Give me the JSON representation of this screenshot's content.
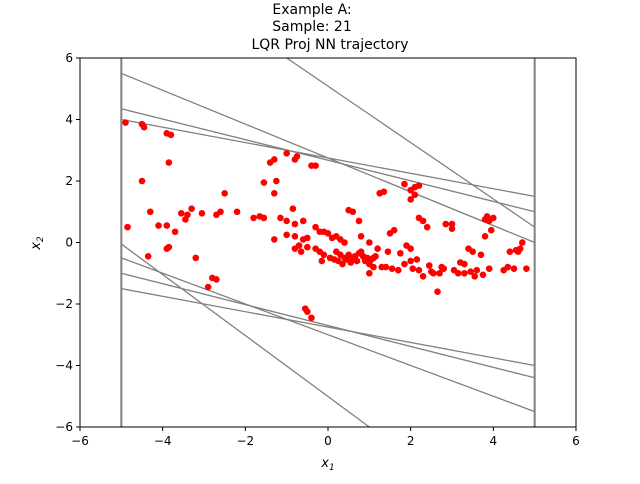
{
  "chart_data": {
    "type": "scatter",
    "title_lines": [
      "Example A:",
      "Sample: 21",
      "LQR Proj NN trajectory"
    ],
    "xlabel_main": "x",
    "xlabel_sub": "1",
    "ylabel_main": "x",
    "ylabel_sub": "2",
    "xlim": [
      -6,
      6
    ],
    "ylim": [
      -6,
      6
    ],
    "xticks": [
      -6,
      -4,
      -2,
      0,
      2,
      4,
      6
    ],
    "yticks": [
      -6,
      -4,
      -2,
      0,
      2,
      4,
      6
    ],
    "xtick_labels": [
      "−6",
      "−4",
      "−2",
      "0",
      "2",
      "4",
      "6"
    ],
    "ytick_labels": [
      "−6",
      "−4",
      "−2",
      "0",
      "2",
      "4",
      "6"
    ],
    "grid": false,
    "colors": {
      "points": "#ff0000",
      "constraint_lines": "#808080",
      "axes": "#000000"
    },
    "constraint_lines": [
      {
        "x1": -5,
        "y1": -6,
        "x2": -5,
        "y2": 6
      },
      {
        "x1": 5,
        "y1": -6,
        "x2": 5,
        "y2": 6
      },
      {
        "x1": -5,
        "y1": 5.5,
        "x2": 5,
        "y2": 0.0
      },
      {
        "x1": -5,
        "y1": 4.35,
        "x2": 5,
        "y2": 1.0
      },
      {
        "x1": -5,
        "y1": 4.0,
        "x2": 5,
        "y2": 1.5
      },
      {
        "x1": -1.0,
        "y1": 6.0,
        "x2": 5,
        "y2": 0.5
      },
      {
        "x1": -5,
        "y1": -0.05,
        "x2": 1.0,
        "y2": -6.0
      },
      {
        "x1": -5,
        "y1": -0.5,
        "x2": 5,
        "y2": -5.5
      },
      {
        "x1": -5,
        "y1": -1.0,
        "x2": 5,
        "y2": -4.4
      },
      {
        "x1": -5,
        "y1": -1.5,
        "x2": 5,
        "y2": -4.0
      }
    ],
    "points": [
      [
        -4.9,
        3.9
      ],
      [
        -4.5,
        3.85
      ],
      [
        -4.45,
        3.75
      ],
      [
        -3.9,
        3.55
      ],
      [
        -3.8,
        3.5
      ],
      [
        -4.5,
        2.0
      ],
      [
        -3.85,
        2.6
      ],
      [
        -4.85,
        0.5
      ],
      [
        -4.3,
        1.0
      ],
      [
        -4.1,
        0.55
      ],
      [
        -3.9,
        0.55
      ],
      [
        -3.55,
        0.95
      ],
      [
        -3.4,
        0.9
      ],
      [
        -3.3,
        1.1
      ],
      [
        -3.05,
        0.95
      ],
      [
        -3.45,
        0.75
      ],
      [
        -3.7,
        0.35
      ],
      [
        -3.85,
        -0.15
      ],
      [
        -3.9,
        -0.2
      ],
      [
        -4.35,
        -0.45
      ],
      [
        -3.2,
        -0.5
      ],
      [
        -2.7,
        -1.2
      ],
      [
        -2.8,
        -1.15
      ],
      [
        -2.9,
        -1.45
      ],
      [
        -2.7,
        0.9
      ],
      [
        -2.6,
        1.0
      ],
      [
        -2.5,
        1.6
      ],
      [
        -2.2,
        1.0
      ],
      [
        -1.8,
        0.8
      ],
      [
        -1.65,
        0.85
      ],
      [
        -1.55,
        0.8
      ],
      [
        -1.55,
        1.95
      ],
      [
        -1.4,
        2.6
      ],
      [
        -1.3,
        2.7
      ],
      [
        -1.3,
        1.6
      ],
      [
        -1.25,
        2.0
      ],
      [
        -1.15,
        0.8
      ],
      [
        -1.0,
        2.9
      ],
      [
        -0.8,
        2.7
      ],
      [
        -0.75,
        2.8
      ],
      [
        -0.4,
        2.5
      ],
      [
        -0.3,
        2.5
      ],
      [
        -0.85,
        1.1
      ],
      [
        -1.0,
        0.7
      ],
      [
        -0.8,
        0.6
      ],
      [
        -0.6,
        0.7
      ],
      [
        -1.3,
        0.1
      ],
      [
        -1.0,
        0.25
      ],
      [
        -0.8,
        0.2
      ],
      [
        -0.6,
        0.1
      ],
      [
        -0.5,
        0.15
      ],
      [
        -0.3,
        0.5
      ],
      [
        -0.2,
        0.35
      ],
      [
        -0.1,
        0.35
      ],
      [
        0.0,
        0.3
      ],
      [
        -0.7,
        -0.1
      ],
      [
        -0.5,
        -0.15
      ],
      [
        -0.3,
        -0.2
      ],
      [
        -0.2,
        -0.3
      ],
      [
        -0.1,
        -0.4
      ],
      [
        -0.8,
        -0.2
      ],
      [
        -0.65,
        -0.3
      ],
      [
        -0.15,
        -0.6
      ],
      [
        -0.55,
        -2.15
      ],
      [
        -0.5,
        -2.25
      ],
      [
        -0.4,
        -2.45
      ],
      [
        0.1,
        0.15
      ],
      [
        0.2,
        0.2
      ],
      [
        0.3,
        0.1
      ],
      [
        0.4,
        0.0
      ],
      [
        0.2,
        -0.3
      ],
      [
        0.3,
        -0.4
      ],
      [
        0.4,
        -0.5
      ],
      [
        0.5,
        -0.4
      ],
      [
        0.6,
        -0.5
      ],
      [
        0.7,
        -0.6
      ],
      [
        0.8,
        -0.3
      ],
      [
        0.9,
        -0.6
      ],
      [
        1.0,
        -0.7
      ],
      [
        1.0,
        -1.0
      ],
      [
        1.1,
        -0.5
      ],
      [
        1.1,
        -0.8
      ],
      [
        0.5,
        1.05
      ],
      [
        0.6,
        1.0
      ],
      [
        0.75,
        0.7
      ],
      [
        0.8,
        0.2
      ],
      [
        1.0,
        0.0
      ],
      [
        1.2,
        -0.2
      ],
      [
        1.3,
        -0.8
      ],
      [
        1.4,
        -0.8
      ],
      [
        1.25,
        1.6
      ],
      [
        1.35,
        1.65
      ],
      [
        1.5,
        0.3
      ],
      [
        1.6,
        0.4
      ],
      [
        1.55,
        -0.85
      ],
      [
        1.7,
        -0.9
      ],
      [
        1.85,
        -0.7
      ],
      [
        1.9,
        -0.1
      ],
      [
        2.0,
        -0.2
      ],
      [
        2.0,
        -0.6
      ],
      [
        2.05,
        -0.85
      ],
      [
        1.85,
        1.9
      ],
      [
        2.0,
        1.7
      ],
      [
        2.1,
        1.8
      ],
      [
        2.2,
        1.85
      ],
      [
        2.1,
        1.55
      ],
      [
        2.0,
        1.4
      ],
      [
        2.2,
        0.8
      ],
      [
        2.3,
        0.7
      ],
      [
        2.4,
        0.5
      ],
      [
        2.2,
        -0.9
      ],
      [
        2.3,
        -1.1
      ],
      [
        2.5,
        -0.95
      ],
      [
        2.55,
        -1.0
      ],
      [
        2.65,
        -1.6
      ],
      [
        2.7,
        -1.0
      ],
      [
        2.8,
        -0.85
      ],
      [
        2.85,
        0.6
      ],
      [
        3.0,
        0.45
      ],
      [
        3.0,
        0.6
      ],
      [
        3.2,
        -0.65
      ],
      [
        3.3,
        -0.7
      ],
      [
        3.3,
        -1.0
      ],
      [
        3.4,
        -0.2
      ],
      [
        3.5,
        -0.3
      ],
      [
        3.55,
        -1.1
      ],
      [
        3.6,
        -0.9
      ],
      [
        3.7,
        -0.4
      ],
      [
        3.8,
        0.75
      ],
      [
        3.85,
        0.85
      ],
      [
        3.9,
        0.7
      ],
      [
        3.9,
        -0.85
      ],
      [
        3.8,
        0.2
      ],
      [
        4.0,
        0.8
      ],
      [
        4.25,
        -0.9
      ],
      [
        4.35,
        -0.8
      ],
      [
        4.5,
        -0.85
      ],
      [
        4.6,
        -0.3
      ],
      [
        4.65,
        -0.2
      ],
      [
        4.7,
        0.0
      ],
      [
        4.8,
        -0.85
      ],
      [
        3.95,
        0.4
      ],
      [
        4.4,
        -0.3
      ],
      [
        4.55,
        -0.25
      ],
      [
        0.05,
        -0.5
      ],
      [
        0.15,
        -0.55
      ],
      [
        0.25,
        -0.6
      ],
      [
        0.35,
        -0.7
      ],
      [
        0.45,
        -0.55
      ],
      [
        0.55,
        -0.65
      ],
      [
        0.65,
        -0.45
      ],
      [
        0.75,
        -0.35
      ],
      [
        0.85,
        -0.45
      ],
      [
        0.95,
        -0.5
      ],
      [
        1.05,
        -0.55
      ],
      [
        1.15,
        -0.45
      ],
      [
        1.45,
        -0.3
      ],
      [
        1.75,
        -0.35
      ],
      [
        2.15,
        -0.55
      ],
      [
        2.45,
        -0.75
      ],
      [
        2.75,
        -0.8
      ],
      [
        3.05,
        -0.9
      ],
      [
        3.15,
        -1.0
      ],
      [
        3.45,
        -0.95
      ],
      [
        3.75,
        -1.05
      ]
    ]
  }
}
